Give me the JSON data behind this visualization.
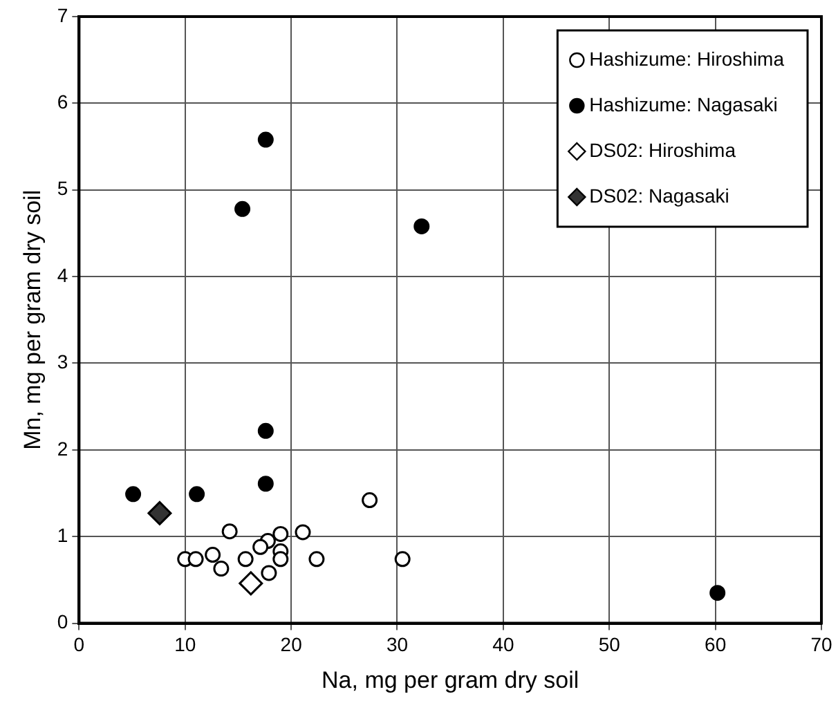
{
  "chart_data": {
    "type": "scatter",
    "xlabel": "Na, mg per gram dry soil",
    "ylabel": "Mn, mg per gram dry soil",
    "xlim": [
      0,
      70
    ],
    "xticks": [
      0,
      10,
      20,
      30,
      40,
      50,
      60,
      70
    ],
    "ylim": [
      0,
      7
    ],
    "yticks": [
      0,
      1,
      2,
      3,
      4,
      5,
      6,
      7
    ],
    "grid": true,
    "legend": "top right",
    "series": [
      {
        "name": "Hashizume: Hiroshima",
        "color": "#ffffff",
        "marker": "circle",
        "x": [
          27.4,
          14.2,
          19.0,
          21.1,
          17.8,
          17.1,
          19.0,
          19.0,
          10.0,
          11.0,
          12.6,
          13.4,
          15.7,
          17.9,
          22.4,
          30.5
        ],
        "values": [
          1.42,
          1.06,
          1.03,
          1.05,
          0.95,
          0.88,
          0.83,
          0.74,
          0.74,
          0.74,
          0.79,
          0.63,
          0.74,
          0.58,
          0.74,
          0.74
        ]
      },
      {
        "name": "Hashizume: Nagasaki",
        "color": "#000000",
        "marker": "circle",
        "x": [
          17.6,
          15.4,
          32.3,
          17.6,
          17.6,
          5.1,
          11.1,
          60.2
        ],
        "values": [
          5.58,
          4.78,
          4.58,
          2.22,
          1.61,
          1.49,
          1.49,
          0.35
        ]
      },
      {
        "name": "DS02: Hiroshima",
        "color": "#ffffff",
        "marker": "diamond",
        "x": [
          16.2
        ],
        "values": [
          0.46
        ]
      },
      {
        "name": "DS02: Nagasaki",
        "color": "#333333",
        "marker": "diamond",
        "x": [
          7.6
        ],
        "values": [
          1.27
        ]
      }
    ]
  }
}
